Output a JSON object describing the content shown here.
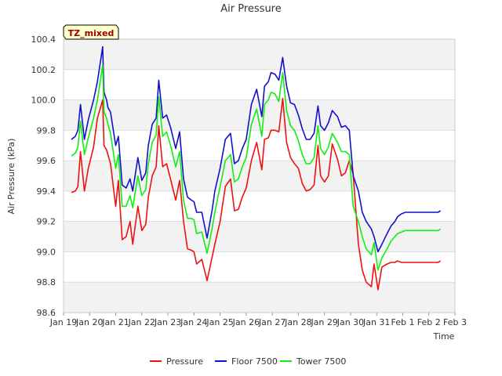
{
  "chart_data": {
    "type": "line",
    "title": "Air Pressure",
    "xlabel": "Time",
    "ylabel": "Air Pressure (kPa)",
    "ylim": [
      98.6,
      100.4
    ],
    "y_ticks": [
      "98.6",
      "98.8",
      "99.0",
      "99.2",
      "99.4",
      "99.6",
      "99.8",
      "100.0",
      "100.2",
      "100.4"
    ],
    "x_ticks": [
      "Jan 19",
      "Jan 20",
      "Jan 21",
      "Jan 22",
      "Jan 23",
      "Jan 24",
      "Jan 25",
      "Jan 26",
      "Jan 27",
      "Jan 28",
      "Jan 29",
      "Jan 30",
      "Jan 31",
      "Feb 1",
      "Feb 2",
      "Feb 3"
    ],
    "xlim": [
      "Jan 19",
      "Feb 3"
    ],
    "grid": true,
    "legend_position": "bottom",
    "annotation": "TZ_mixed",
    "series": [
      {
        "name": "Pressure",
        "color": "#ee1111",
        "x": [
          0.3,
          0.45,
          0.55,
          0.65,
          0.8,
          0.95,
          1.15,
          1.3,
          1.5,
          1.55,
          1.65,
          1.7,
          1.8,
          2.0,
          2.1,
          2.25,
          2.4,
          2.55,
          2.65,
          2.85,
          3.0,
          3.15,
          3.25,
          3.4,
          3.55,
          3.65,
          3.8,
          3.95,
          4.1,
          4.3,
          4.45,
          4.6,
          4.75,
          4.9,
          5.0,
          5.1,
          5.3,
          5.5,
          5.7,
          5.8,
          6.0,
          6.2,
          6.4,
          6.55,
          6.7,
          6.85,
          7.0,
          7.2,
          7.4,
          7.6,
          7.7,
          7.85,
          7.95,
          8.1,
          8.25,
          8.4,
          8.55,
          8.7,
          8.85,
          9.0,
          9.15,
          9.3,
          9.45,
          9.6,
          9.75,
          9.85,
          10.0,
          10.15,
          10.3,
          10.5,
          10.65,
          10.8,
          10.95,
          11.1,
          11.3,
          11.45,
          11.6,
          11.8,
          11.9,
          12.05,
          12.2,
          12.4,
          12.55,
          12.7,
          12.8,
          12.95,
          13.1,
          13.2,
          13.4,
          13.5,
          13.7,
          13.85,
          14.0,
          14.15,
          14.25,
          14.35,
          14.45
        ],
        "values": [
          99.39,
          99.4,
          99.43,
          99.66,
          99.4,
          99.55,
          99.69,
          99.88,
          100.0,
          99.7,
          99.67,
          99.64,
          99.58,
          99.3,
          99.47,
          99.08,
          99.1,
          99.2,
          99.05,
          99.3,
          99.14,
          99.18,
          99.36,
          99.5,
          99.56,
          99.83,
          99.56,
          99.58,
          99.48,
          99.34,
          99.47,
          99.2,
          99.02,
          99.01,
          99.0,
          98.92,
          98.95,
          98.81,
          98.97,
          99.05,
          99.2,
          99.43,
          99.48,
          99.27,
          99.28,
          99.36,
          99.42,
          99.6,
          99.72,
          99.54,
          99.74,
          99.75,
          99.8,
          99.8,
          99.79,
          100.01,
          99.72,
          99.62,
          99.58,
          99.55,
          99.45,
          99.4,
          99.41,
          99.44,
          99.7,
          99.5,
          99.46,
          99.5,
          99.71,
          99.61,
          99.5,
          99.52,
          99.6,
          99.51,
          99.05,
          98.88,
          98.8,
          98.77,
          98.92,
          98.75,
          98.9,
          98.92,
          98.93,
          98.93,
          98.94,
          98.93,
          98.93,
          98.93,
          98.93,
          98.93,
          98.93,
          98.93,
          98.93,
          98.93,
          98.93,
          98.93,
          98.94
        ]
      },
      {
        "name": "Floor 7500",
        "color": "#1111cc",
        "x": [
          0.3,
          0.45,
          0.55,
          0.65,
          0.8,
          0.95,
          1.15,
          1.3,
          1.5,
          1.55,
          1.65,
          1.7,
          1.8,
          2.0,
          2.1,
          2.25,
          2.4,
          2.55,
          2.65,
          2.85,
          3.0,
          3.15,
          3.25,
          3.4,
          3.55,
          3.65,
          3.8,
          3.95,
          4.1,
          4.3,
          4.45,
          4.6,
          4.75,
          4.9,
          5.0,
          5.1,
          5.3,
          5.5,
          5.7,
          5.8,
          6.0,
          6.2,
          6.4,
          6.55,
          6.7,
          6.85,
          7.0,
          7.2,
          7.4,
          7.6,
          7.7,
          7.85,
          7.95,
          8.1,
          8.25,
          8.4,
          8.55,
          8.7,
          8.85,
          9.0,
          9.15,
          9.3,
          9.45,
          9.6,
          9.75,
          9.85,
          10.0,
          10.15,
          10.3,
          10.5,
          10.65,
          10.8,
          10.95,
          11.1,
          11.3,
          11.45,
          11.6,
          11.8,
          11.9,
          12.05,
          12.2,
          12.4,
          12.55,
          12.7,
          12.8,
          12.95,
          13.1,
          13.2,
          13.4,
          13.5,
          13.7,
          13.85,
          14.0,
          14.15,
          14.25,
          14.35,
          14.45
        ],
        "values": [
          99.74,
          99.76,
          99.8,
          99.97,
          99.74,
          99.87,
          100.0,
          100.12,
          100.35,
          100.05,
          100.0,
          99.95,
          99.92,
          99.7,
          99.76,
          99.44,
          99.42,
          99.48,
          99.4,
          99.62,
          99.47,
          99.52,
          99.7,
          99.84,
          99.88,
          100.13,
          99.88,
          99.9,
          99.82,
          99.68,
          99.79,
          99.48,
          99.36,
          99.34,
          99.33,
          99.26,
          99.26,
          99.09,
          99.28,
          99.4,
          99.55,
          99.74,
          99.78,
          99.58,
          99.6,
          99.68,
          99.74,
          99.97,
          100.07,
          99.89,
          100.09,
          100.12,
          100.18,
          100.17,
          100.13,
          100.28,
          100.09,
          99.98,
          99.97,
          99.9,
          99.81,
          99.74,
          99.74,
          99.78,
          99.96,
          99.83,
          99.8,
          99.85,
          99.93,
          99.89,
          99.82,
          99.83,
          99.8,
          99.5,
          99.4,
          99.26,
          99.2,
          99.15,
          99.1,
          99.0,
          99.05,
          99.12,
          99.17,
          99.2,
          99.23,
          99.25,
          99.26,
          99.26,
          99.26,
          99.26,
          99.26,
          99.26,
          99.26,
          99.26,
          99.26,
          99.26,
          99.27
        ]
      },
      {
        "name": "Tower 7500",
        "color": "#11ee11",
        "x": [
          0.3,
          0.45,
          0.55,
          0.65,
          0.8,
          0.95,
          1.15,
          1.3,
          1.5,
          1.55,
          1.65,
          1.7,
          1.8,
          2.0,
          2.1,
          2.25,
          2.4,
          2.55,
          2.65,
          2.85,
          3.0,
          3.15,
          3.25,
          3.4,
          3.55,
          3.65,
          3.8,
          3.95,
          4.1,
          4.3,
          4.45,
          4.6,
          4.75,
          4.9,
          5.0,
          5.1,
          5.3,
          5.5,
          5.7,
          5.8,
          6.0,
          6.2,
          6.4,
          6.55,
          6.7,
          6.85,
          7.0,
          7.2,
          7.4,
          7.6,
          7.7,
          7.85,
          7.95,
          8.1,
          8.25,
          8.4,
          8.55,
          8.7,
          8.85,
          9.0,
          9.15,
          9.3,
          9.45,
          9.6,
          9.75,
          9.85,
          10.0,
          10.15,
          10.3,
          10.5,
          10.65,
          10.8,
          10.95,
          11.1,
          11.3,
          11.45,
          11.6,
          11.8,
          11.9,
          12.05,
          12.2,
          12.4,
          12.55,
          12.7,
          12.8,
          12.95,
          13.1,
          13.2,
          13.4,
          13.5,
          13.7,
          13.85,
          14.0,
          14.15,
          14.25,
          14.35,
          14.45
        ],
        "values": [
          99.63,
          99.65,
          99.69,
          99.86,
          99.64,
          99.75,
          99.88,
          100.0,
          100.23,
          99.92,
          99.88,
          99.84,
          99.78,
          99.55,
          99.64,
          99.3,
          99.3,
          99.37,
          99.29,
          99.5,
          99.37,
          99.41,
          99.58,
          99.72,
          99.77,
          100.02,
          99.76,
          99.79,
          99.7,
          99.56,
          99.66,
          99.34,
          99.22,
          99.22,
          99.21,
          99.12,
          99.13,
          98.99,
          99.16,
          99.26,
          99.43,
          99.6,
          99.64,
          99.46,
          99.48,
          99.56,
          99.62,
          99.84,
          99.94,
          99.76,
          99.97,
          100.0,
          100.05,
          100.04,
          99.99,
          100.18,
          99.93,
          99.83,
          99.8,
          99.73,
          99.64,
          99.58,
          99.58,
          99.62,
          99.83,
          99.68,
          99.64,
          99.69,
          99.78,
          99.72,
          99.66,
          99.66,
          99.64,
          99.3,
          99.2,
          99.1,
          99.02,
          98.98,
          99.06,
          98.88,
          98.96,
          99.02,
          99.07,
          99.1,
          99.12,
          99.13,
          99.14,
          99.14,
          99.14,
          99.14,
          99.14,
          99.14,
          99.14,
          99.14,
          99.14,
          99.14,
          99.15
        ]
      }
    ]
  }
}
